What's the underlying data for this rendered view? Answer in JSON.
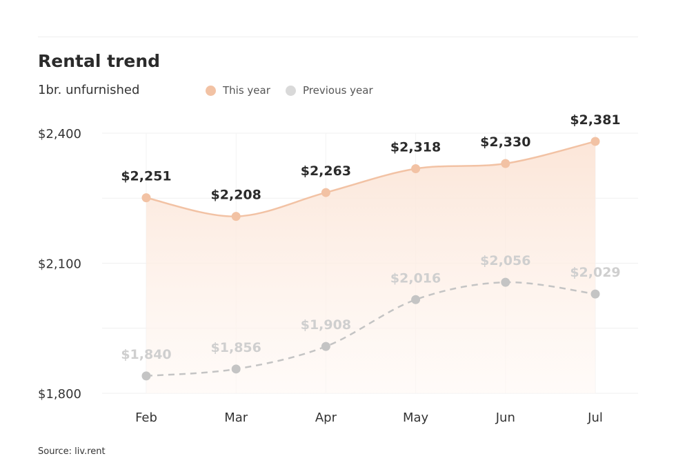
{
  "chart_data": {
    "type": "line",
    "title": "Rental trend",
    "subtitle": "1br. unfurnished",
    "categories": [
      "Feb",
      "Mar",
      "Apr",
      "May",
      "Jun",
      "Jul"
    ],
    "series": [
      {
        "name": "This year",
        "values": [
          2251,
          2208,
          2263,
          2318,
          2330,
          2381
        ],
        "labels": [
          "$2,251",
          "$2,208",
          "$2,263",
          "$2,318",
          "$2,330",
          "$2,381"
        ],
        "color": "#f2c2a4",
        "style": "solid",
        "area": true
      },
      {
        "name": "Previous year",
        "values": [
          1840,
          1856,
          1908,
          2016,
          2056,
          2029
        ],
        "labels": [
          "$1,840",
          "$1,856",
          "$1,908",
          "$2,016",
          "$2,056",
          "$2,029"
        ],
        "color": "#c4c4c4",
        "style": "dashed",
        "area": false
      }
    ],
    "ylim": [
      1800,
      2400
    ],
    "yticks": [
      {
        "value": 1800,
        "label": "$1,800"
      },
      {
        "value": 2100,
        "label": "$2,100"
      },
      {
        "value": 2400,
        "label": "$2,400"
      }
    ],
    "grid": true,
    "legend": "top"
  },
  "source": "Source: liv.rent"
}
